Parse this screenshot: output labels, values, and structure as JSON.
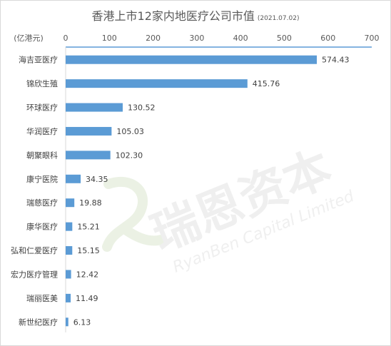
{
  "chart_data": {
    "type": "bar",
    "orientation": "horizontal",
    "title": "香港上市12家内地医疗公司市值",
    "subtitle": "(2021.07.02)",
    "unit_label": "(亿港元)",
    "x_axis_position": "top",
    "xlim": [
      0,
      700
    ],
    "xticks": [
      0,
      100,
      200,
      300,
      400,
      500,
      600,
      700
    ],
    "categories": [
      "海吉亚医疗",
      "锦欣生殖",
      "环球医疗",
      "华润医疗",
      "朝聚眼科",
      "康宁医院",
      "瑞慈医疗",
      "康华医疗",
      "弘和仁爱医疗",
      "宏力医疗管理",
      "瑞丽医美",
      "新世纪医疗"
    ],
    "values": [
      574.43,
      415.76,
      130.52,
      105.03,
      102.3,
      34.35,
      19.88,
      15.21,
      15.15,
      12.42,
      11.49,
      6.13
    ],
    "value_labels": [
      "574.43",
      "415.76",
      "130.52",
      "105.03",
      "102.30",
      "34.35",
      "19.88",
      "15.21",
      "15.15",
      "12.42",
      "11.49",
      "6.13"
    ],
    "grid": false,
    "bar_color": "#5b9bd5"
  },
  "watermark": {
    "brand_cn": "瑞恩资本",
    "brand_en": "RyanBen Capital Limited"
  }
}
